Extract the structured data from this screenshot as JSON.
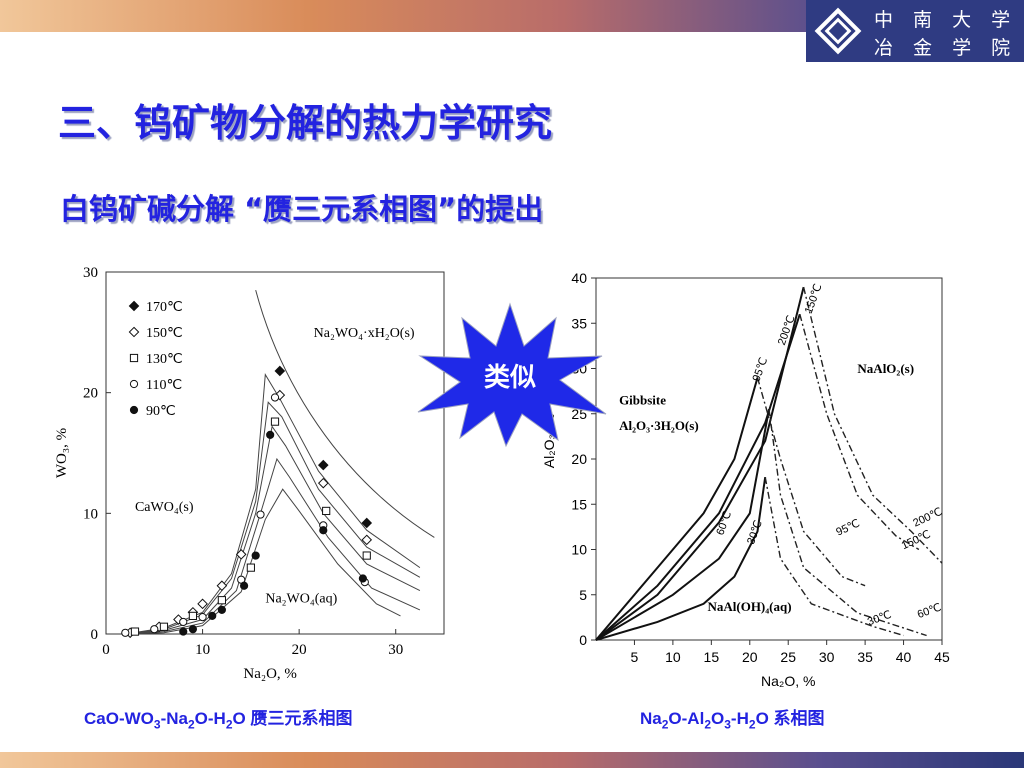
{
  "header": {
    "university_line1": "中 南 大 学",
    "university_line2": "冶 金 学 院"
  },
  "slide": {
    "title": "三、钨矿物分解的热力学研究",
    "subtitle": "白钨矿碱分解 “赝三元系相图”的提出",
    "burst_label": "类似",
    "caption_left": {
      "parts": [
        "CaO-WO",
        "3",
        "-Na",
        "2",
        "O-H",
        "2",
        "O 赝三元系相图"
      ]
    },
    "caption_right": {
      "parts": [
        "Na",
        "2",
        "O-Al",
        "2",
        "O",
        "3",
        "-H",
        "2",
        "O 系相图"
      ]
    }
  },
  "chart_data": [
    {
      "type": "scatter",
      "xlabel": "Na₂O, %",
      "ylabel": "WO₃, %",
      "xlim": [
        0,
        35
      ],
      "ylim": [
        0,
        30
      ],
      "x_ticks": [
        "0",
        "10",
        "20",
        "30"
      ],
      "y_ticks": [
        "0",
        "10",
        "20",
        "30"
      ],
      "legend_position": "top-left",
      "region_labels": {
        "solid": "Na₂WO₄·xH₂O(s)",
        "cawo4": "CaWO₄(s)",
        "aq": "Na₂WO₄(aq)"
      },
      "series": [
        {
          "name": "170℃",
          "marker": "diamond-filled",
          "x": [
            18.0,
            22.5,
            27.0
          ],
          "y": [
            21.8,
            14.0,
            9.2
          ]
        },
        {
          "name": "150℃",
          "marker": "diamond-open",
          "x": [
            2.5,
            5.5,
            7.5,
            9.0,
            10.0,
            12.0,
            14.0,
            18.0,
            22.5,
            27.0
          ],
          "y": [
            0.1,
            0.6,
            1.2,
            1.8,
            2.5,
            4.0,
            6.6,
            19.8,
            12.5,
            7.8
          ]
        },
        {
          "name": "130℃",
          "marker": "square-open",
          "x": [
            3.0,
            6.0,
            9.0,
            12.0,
            15.0,
            17.5,
            22.8,
            27.0
          ],
          "y": [
            0.2,
            0.6,
            1.5,
            2.8,
            5.5,
            17.6,
            10.2,
            6.5
          ]
        },
        {
          "name": "110℃",
          "marker": "circle-open",
          "x": [
            2.0,
            5.0,
            8.0,
            10.0,
            14.0,
            16.0,
            17.5,
            22.5,
            26.8
          ],
          "y": [
            0.1,
            0.4,
            1.0,
            1.4,
            4.5,
            9.9,
            19.6,
            9.0,
            4.3
          ]
        },
        {
          "name": "90℃",
          "marker": "circle-filled",
          "x": [
            8.0,
            9.0,
            11.0,
            12.0,
            14.3,
            15.5,
            17.0,
            22.5,
            26.6
          ],
          "y": [
            0.2,
            0.4,
            1.5,
            2.0,
            4.0,
            6.5,
            16.5,
            8.6,
            4.6
          ]
        }
      ]
    },
    {
      "type": "line",
      "xlabel": "Na₂O, %",
      "ylabel": "Al₂O₃, %",
      "xlim": [
        0,
        45
      ],
      "ylim": [
        0,
        40
      ],
      "x_ticks": [
        "5",
        "10",
        "15",
        "20",
        "25",
        "30",
        "35",
        "40",
        "45"
      ],
      "y_ticks": [
        "0",
        "5",
        "10",
        "15",
        "20",
        "25",
        "30",
        "35",
        "40"
      ],
      "region_labels": {
        "gibbsite_line1": "Gibbsite",
        "gibbsite_line2": "Al₂O₃·3H₂O(s)",
        "naalo2": "NaAlO₂(s)",
        "naaloh4": "NaAl(OH)₄(aq)"
      },
      "curve_labels": [
        "95℃",
        "200℃",
        "150℃",
        "60℃",
        "30℃",
        "95℃",
        "200℃",
        "150℃",
        "60℃",
        "30℃"
      ]
    }
  ],
  "colors": {
    "title": "#2323e0",
    "logo_bg": "#2f3b82",
    "burst_fill": "#1f29e8"
  }
}
